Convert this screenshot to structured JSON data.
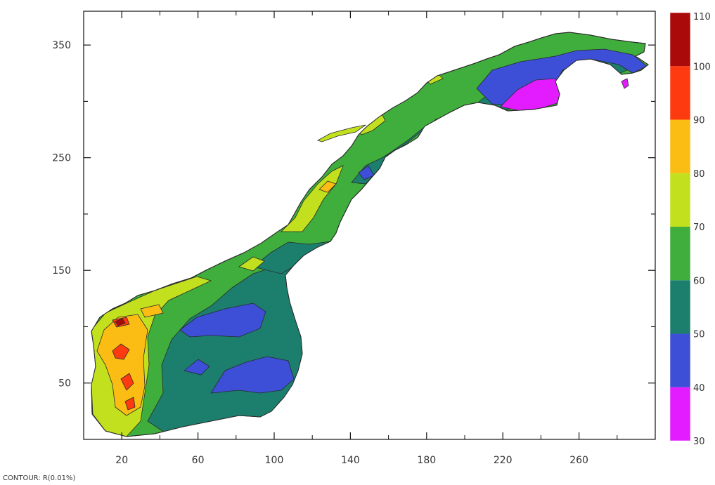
{
  "chart_data": {
    "type": "heatmap",
    "title": "",
    "xlabel": "",
    "ylabel": "",
    "xlim": [
      0,
      300
    ],
    "ylim": [
      0,
      380
    ],
    "x_ticks": [
      20,
      60,
      100,
      140,
      180,
      220,
      260
    ],
    "y_ticks": [
      50,
      150,
      250,
      350
    ],
    "colorbar": {
      "levels": [
        30,
        40,
        50,
        60,
        70,
        80,
        90,
        100,
        110
      ],
      "colors": [
        "#e31cff",
        "#3d4fd6",
        "#1c7f6e",
        "#3fae3c",
        "#c2e01e",
        "#fbbd13",
        "#fe3a10",
        "#aa0b0a"
      ]
    },
    "footnote": "CONTOUR: R(0.01%)"
  },
  "colors": {
    "map_outline": "#2a2a2a",
    "axis": "#111111",
    "tick_text": "#333333"
  }
}
